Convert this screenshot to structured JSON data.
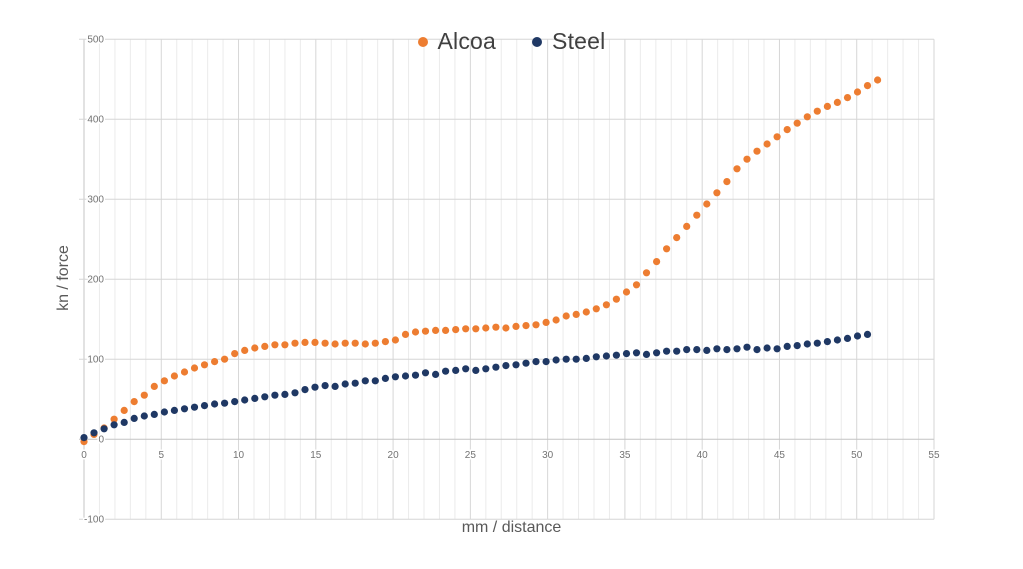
{
  "colors": {
    "background": "#ffffff",
    "alcoa": "#ED7D31",
    "steel": "#1F3864",
    "grid_minor": "#ebebeb",
    "grid_major": "#d6d6d6",
    "axis_line": "#c4c4c4",
    "tick_label": "#737373",
    "axis_title": "#595959",
    "legend_text": "#404040"
  },
  "chart_data": {
    "type": "scatter",
    "title": "",
    "xlabel": "mm / distance",
    "ylabel": "kn / force",
    "xlim": [
      0,
      55
    ],
    "ylim": [
      -100,
      500
    ],
    "x_ticks": [
      0,
      5,
      10,
      15,
      20,
      25,
      30,
      35,
      40,
      45,
      50,
      55
    ],
    "x_minor_step": 1,
    "y_ticks": [
      -100,
      0,
      100,
      200,
      300,
      400,
      500
    ],
    "grid": true,
    "legend_position": "top-center",
    "series": [
      {
        "name": "Alcoa",
        "color": "#ED7D31",
        "points": [
          [
            0,
            -3
          ],
          [
            0.65,
            6
          ],
          [
            1.3,
            14
          ],
          [
            1.95,
            25
          ],
          [
            2.6,
            36
          ],
          [
            3.25,
            47
          ],
          [
            3.9,
            55
          ],
          [
            4.55,
            66
          ],
          [
            5.2,
            73
          ],
          [
            5.85,
            79
          ],
          [
            6.5,
            84
          ],
          [
            7.15,
            89
          ],
          [
            7.8,
            93
          ],
          [
            8.45,
            97
          ],
          [
            9.1,
            100
          ],
          [
            9.75,
            107
          ],
          [
            10.4,
            111
          ],
          [
            11.05,
            114
          ],
          [
            11.7,
            116
          ],
          [
            12.35,
            118
          ],
          [
            13,
            118
          ],
          [
            13.65,
            120
          ],
          [
            14.3,
            121
          ],
          [
            14.95,
            121
          ],
          [
            15.6,
            120
          ],
          [
            16.25,
            119
          ],
          [
            16.9,
            120
          ],
          [
            17.55,
            120
          ],
          [
            18.2,
            119
          ],
          [
            18.85,
            120
          ],
          [
            19.5,
            122
          ],
          [
            20.15,
            124
          ],
          [
            20.8,
            131
          ],
          [
            21.45,
            134
          ],
          [
            22.1,
            135
          ],
          [
            22.75,
            136
          ],
          [
            23.4,
            136
          ],
          [
            24.05,
            137
          ],
          [
            24.7,
            138
          ],
          [
            25.35,
            138
          ],
          [
            26,
            139
          ],
          [
            26.65,
            140
          ],
          [
            27.3,
            139
          ],
          [
            27.95,
            141
          ],
          [
            28.6,
            142
          ],
          [
            29.25,
            143
          ],
          [
            29.9,
            146
          ],
          [
            30.55,
            149
          ],
          [
            31.2,
            154
          ],
          [
            31.85,
            156
          ],
          [
            32.5,
            159
          ],
          [
            33.15,
            163
          ],
          [
            33.8,
            168
          ],
          [
            34.45,
            175
          ],
          [
            35.1,
            184
          ],
          [
            35.75,
            193
          ],
          [
            36.4,
            208
          ],
          [
            37.05,
            222
          ],
          [
            37.7,
            238
          ],
          [
            38.35,
            252
          ],
          [
            39,
            266
          ],
          [
            39.65,
            280
          ],
          [
            40.3,
            294
          ],
          [
            40.95,
            308
          ],
          [
            41.6,
            322
          ],
          [
            42.25,
            338
          ],
          [
            42.9,
            350
          ],
          [
            43.55,
            360
          ],
          [
            44.2,
            369
          ],
          [
            44.85,
            378
          ],
          [
            45.5,
            387
          ],
          [
            46.15,
            395
          ],
          [
            46.8,
            403
          ],
          [
            47.45,
            410
          ],
          [
            48.1,
            416
          ],
          [
            48.75,
            421
          ],
          [
            49.4,
            427
          ],
          [
            50.05,
            434
          ],
          [
            50.7,
            442
          ],
          [
            51.35,
            449
          ]
        ]
      },
      {
        "name": "Steel",
        "color": "#1F3864",
        "points": [
          [
            0,
            2
          ],
          [
            0.65,
            8
          ],
          [
            1.3,
            13
          ],
          [
            1.95,
            18
          ],
          [
            2.6,
            21
          ],
          [
            3.25,
            26
          ],
          [
            3.9,
            29
          ],
          [
            4.55,
            31
          ],
          [
            5.2,
            34
          ],
          [
            5.85,
            36
          ],
          [
            6.5,
            38
          ],
          [
            7.15,
            40
          ],
          [
            7.8,
            42
          ],
          [
            8.45,
            44
          ],
          [
            9.1,
            45
          ],
          [
            9.75,
            47
          ],
          [
            10.4,
            49
          ],
          [
            11.05,
            51
          ],
          [
            11.7,
            53
          ],
          [
            12.35,
            55
          ],
          [
            13,
            56
          ],
          [
            13.65,
            58
          ],
          [
            14.3,
            62
          ],
          [
            14.95,
            65
          ],
          [
            15.6,
            67
          ],
          [
            16.25,
            66
          ],
          [
            16.9,
            69
          ],
          [
            17.55,
            70
          ],
          [
            18.2,
            73
          ],
          [
            18.85,
            73
          ],
          [
            19.5,
            76
          ],
          [
            20.15,
            78
          ],
          [
            20.8,
            79
          ],
          [
            21.45,
            80
          ],
          [
            22.1,
            83
          ],
          [
            22.75,
            81
          ],
          [
            23.4,
            85
          ],
          [
            24.05,
            86
          ],
          [
            24.7,
            88
          ],
          [
            25.35,
            86
          ],
          [
            26,
            88
          ],
          [
            26.65,
            90
          ],
          [
            27.3,
            92
          ],
          [
            27.95,
            93
          ],
          [
            28.6,
            95
          ],
          [
            29.25,
            97
          ],
          [
            29.9,
            97
          ],
          [
            30.55,
            99
          ],
          [
            31.2,
            100
          ],
          [
            31.85,
            100
          ],
          [
            32.5,
            101
          ],
          [
            33.15,
            103
          ],
          [
            33.8,
            104
          ],
          [
            34.45,
            105
          ],
          [
            35.1,
            107
          ],
          [
            35.75,
            108
          ],
          [
            36.4,
            106
          ],
          [
            37.05,
            108
          ],
          [
            37.7,
            110
          ],
          [
            38.35,
            110
          ],
          [
            39,
            112
          ],
          [
            39.65,
            112
          ],
          [
            40.3,
            111
          ],
          [
            40.95,
            113
          ],
          [
            41.6,
            112
          ],
          [
            42.25,
            113
          ],
          [
            42.9,
            115
          ],
          [
            43.55,
            112
          ],
          [
            44.2,
            114
          ],
          [
            44.85,
            113
          ],
          [
            45.5,
            116
          ],
          [
            46.15,
            117
          ],
          [
            46.8,
            119
          ],
          [
            47.45,
            120
          ],
          [
            48.1,
            122
          ],
          [
            48.75,
            124
          ],
          [
            49.4,
            126
          ],
          [
            50.05,
            129
          ],
          [
            50.7,
            131
          ]
        ]
      }
    ]
  }
}
